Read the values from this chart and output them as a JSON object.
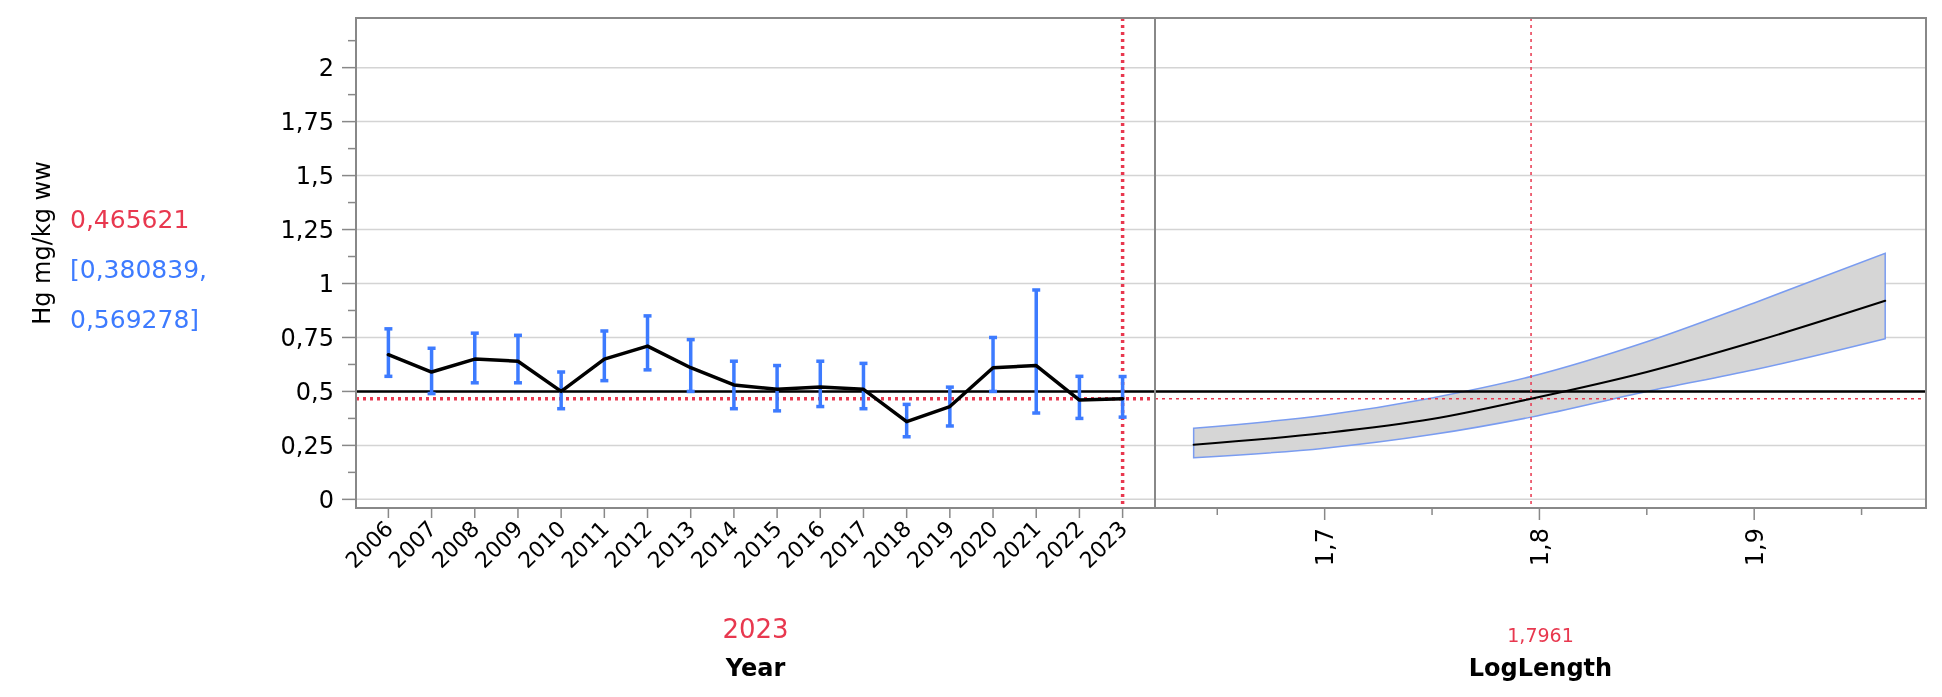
{
  "chart_data": [
    {
      "type": "line",
      "xlabel": "Year",
      "ylabel": "Hg mg/kg ww",
      "categories": [
        "2006",
        "2007",
        "2008",
        "2009",
        "2010",
        "2011",
        "2012",
        "2013",
        "2014",
        "2015",
        "2016",
        "2017",
        "2018",
        "2019",
        "2020",
        "2021",
        "2022",
        "2023"
      ],
      "series": [
        {
          "color": "#000000",
          "values": [
            0.67,
            0.59,
            0.65,
            0.64,
            0.5,
            0.65,
            0.71,
            0.61,
            0.53,
            0.51,
            0.52,
            0.51,
            0.36,
            0.43,
            0.61,
            0.62,
            0.46,
            0.466
          ],
          "errors": [
            [
              0.57,
              0.79
            ],
            [
              0.49,
              0.7
            ],
            [
              0.54,
              0.77
            ],
            [
              0.54,
              0.76
            ],
            [
              0.42,
              0.59
            ],
            [
              0.55,
              0.78
            ],
            [
              0.6,
              0.85
            ],
            [
              0.5,
              0.74
            ],
            [
              0.42,
              0.64
            ],
            [
              0.41,
              0.62
            ],
            [
              0.43,
              0.64
            ],
            [
              0.42,
              0.63
            ],
            [
              0.29,
              0.44
            ],
            [
              0.34,
              0.52
            ],
            [
              0.5,
              0.75
            ],
            [
              0.4,
              0.97
            ],
            [
              0.375,
              0.57
            ],
            [
              0.381,
              0.569
            ]
          ]
        }
      ],
      "ylim": [
        -0.04,
        2.23
      ],
      "yticks": [
        0,
        {
          "value": 0.125,
          "label": null
        },
        {
          "value": 0.25,
          "label": "0,25"
        },
        {
          "value": 0.375,
          "label": null
        },
        {
          "value": 0.5,
          "label": "0,5"
        },
        {
          "value": 0.625,
          "label": null
        },
        {
          "value": 0.75,
          "label": "0,75"
        },
        {
          "value": 0.875,
          "label": null
        },
        1,
        {
          "value": 1.125,
          "label": null
        },
        {
          "value": 1.25,
          "label": "1,25"
        },
        {
          "value": 1.375,
          "label": null
        },
        {
          "value": 1.5,
          "label": "1,5"
        },
        {
          "value": 1.625,
          "label": null
        },
        {
          "value": 1.75,
          "label": "1,75"
        },
        {
          "value": 1.875,
          "label": null
        },
        2,
        {
          "value": 2.125,
          "label": null
        }
      ],
      "grid": "y",
      "marker": "none",
      "ref_lines": [
        {
          "axis": "y",
          "value": 0.5,
          "color": "#000000",
          "line_style": "solid"
        },
        {
          "axis": "y",
          "value": 0.465621,
          "label": "0,465621",
          "color": "#e8384f",
          "line_style": "dotted"
        },
        {
          "axis": "x",
          "value": "2023",
          "label": "2023",
          "color": "#e8384f",
          "line_style": "dotted"
        }
      ],
      "annotations": [
        "[0,380839, 0,569278]"
      ]
    },
    {
      "type": "line",
      "xlabel": "LogLength",
      "series": [
        {
          "color": "#000000",
          "x": [
            1.639,
            1.7,
            1.75,
            1.7961,
            1.85,
            1.9,
            1.961
          ],
          "values": [
            0.253,
            0.307,
            0.372,
            0.466,
            0.59,
            0.73,
            0.92
          ],
          "lower": [
            0.193,
            0.237,
            0.3,
            0.381,
            0.5,
            0.6,
            0.744
          ],
          "upper": [
            0.33,
            0.39,
            0.47,
            0.569,
            0.73,
            0.91,
            1.14
          ]
        }
      ],
      "xlim": [
        1.621,
        1.98
      ],
      "xticks": [
        {
          "value": 1.65,
          "label": null
        },
        {
          "value": 1.7,
          "label": "1,7"
        },
        {
          "value": 1.75,
          "label": null
        },
        {
          "value": 1.8,
          "label": "1,8"
        },
        {
          "value": 1.85,
          "label": null
        },
        {
          "value": 1.9,
          "label": "1,9"
        },
        {
          "value": 1.95,
          "label": null
        }
      ],
      "ylim": [
        -0.04,
        2.23
      ],
      "yticks": [
        0,
        0.25,
        0.5,
        0.75,
        1,
        1.25,
        1.5,
        1.75,
        2
      ],
      "tick_labels": "x",
      "grid": "y",
      "marker": "none",
      "ref_lines": [
        {
          "axis": "y",
          "value": 0.5,
          "color": "#000000",
          "line_style": "solid"
        },
        {
          "axis": "y",
          "value": 0.465621,
          "color": "#e8384f",
          "line_style": "dotted"
        },
        {
          "axis": "x",
          "value": 1.7961,
          "label": "1,7961",
          "color": "#e8384f",
          "line_style": "dotted"
        }
      ]
    }
  ]
}
